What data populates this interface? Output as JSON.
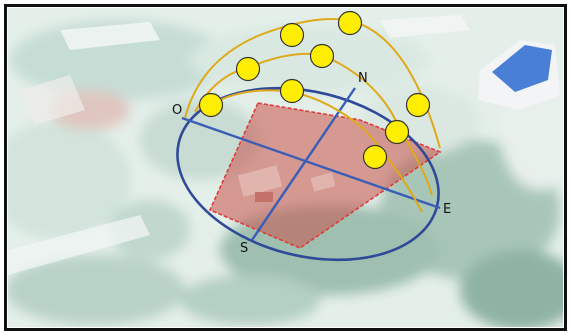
{
  "figure": {
    "compass_labels": {
      "north": "N",
      "south": "S",
      "east": "E",
      "west": "O"
    },
    "colors": {
      "frame": "#111111",
      "horizon_ellipse": "#2e4a99",
      "axes": "#3b5db8",
      "sun_path": "#e0a91a",
      "sun_fill": "#ffee00",
      "sun_stroke": "#333333",
      "parcel_fill": "#c8524a",
      "parcel_outline": "#e03a3a",
      "aerial_base": "#e4efe9"
    },
    "icons": [
      "sun-icon"
    ]
  }
}
